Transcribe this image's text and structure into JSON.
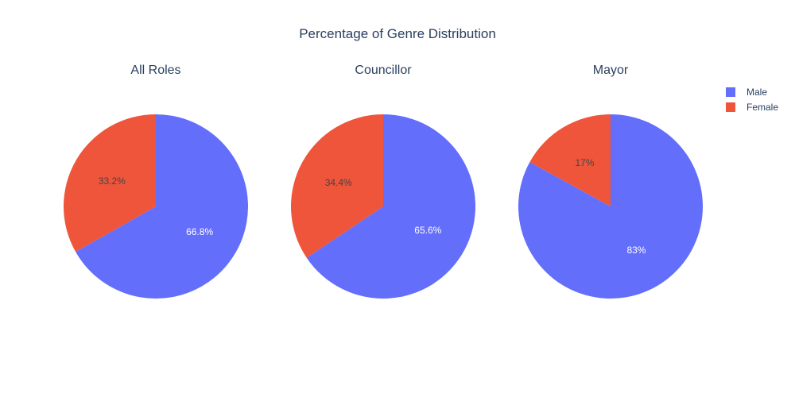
{
  "chart_data": {
    "type": "pie",
    "title": "Percentage of Genre Distribution",
    "legend": {
      "placement": "top-right",
      "entries": [
        {
          "name": "Male",
          "color": "#636efa"
        },
        {
          "name": "Female",
          "color": "#ef553b"
        }
      ]
    },
    "subplots": [
      {
        "title": "All Roles",
        "slices": [
          {
            "label": "Male",
            "value": 66.8,
            "text": "66.8%",
            "color": "#636efa"
          },
          {
            "label": "Female",
            "value": 33.2,
            "text": "33.2%",
            "color": "#ef553b"
          }
        ]
      },
      {
        "title": "Councillor",
        "slices": [
          {
            "label": "Male",
            "value": 65.6,
            "text": "65.6%",
            "color": "#636efa"
          },
          {
            "label": "Female",
            "value": 34.4,
            "text": "34.4%",
            "color": "#ef553b"
          }
        ]
      },
      {
        "title": "Mayor",
        "slices": [
          {
            "label": "Male",
            "value": 83,
            "text": "83%",
            "color": "#636efa"
          },
          {
            "label": "Female",
            "value": 17,
            "text": "17%",
            "color": "#ef553b"
          }
        ]
      }
    ]
  }
}
